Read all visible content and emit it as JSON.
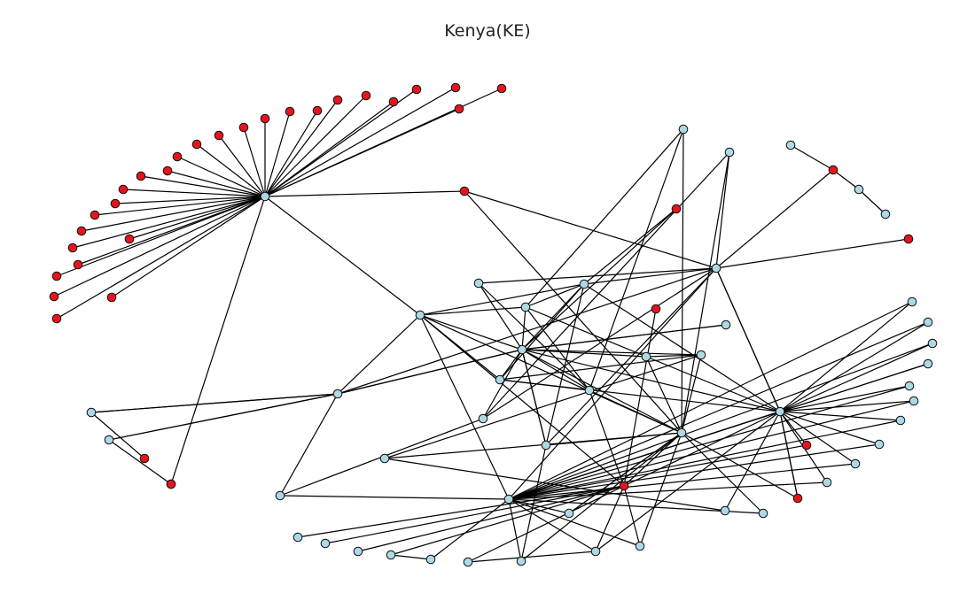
{
  "title": "Kenya(KE)",
  "colors": {
    "red": "#e8141c",
    "blue": "#add8e6",
    "edge": "#000000",
    "outline": "#111111"
  },
  "nodes": [
    {
      "id": "h1",
      "c": "blue"
    },
    {
      "id": "h2",
      "c": "blue"
    },
    {
      "id": "h3",
      "c": "blue"
    },
    {
      "id": "h4",
      "c": "blue"
    },
    {
      "id": "h5",
      "c": "blue"
    },
    {
      "id": "h6",
      "c": "blue"
    },
    {
      "id": "h7",
      "c": "blue"
    },
    {
      "id": "h8",
      "c": "blue"
    },
    {
      "id": "h9",
      "c": "blue"
    },
    {
      "id": "h10",
      "c": "blue"
    },
    {
      "id": "h11",
      "c": "blue"
    },
    {
      "id": "h12",
      "c": "red"
    },
    {
      "id": "h13",
      "c": "blue"
    },
    {
      "id": "h14",
      "c": "blue"
    },
    {
      "id": "h15",
      "c": "blue"
    },
    {
      "id": "h16",
      "c": "blue"
    },
    {
      "id": "h17",
      "c": "blue"
    },
    {
      "id": "h18",
      "c": "blue"
    },
    {
      "id": "h19",
      "c": "blue"
    },
    {
      "id": "h20",
      "c": "red"
    },
    {
      "id": "h21",
      "c": "red"
    },
    {
      "id": "h22",
      "c": "red"
    },
    {
      "id": "h23",
      "c": "blue"
    },
    {
      "id": "h24",
      "c": "blue"
    },
    {
      "id": "h25",
      "c": "blue"
    },
    {
      "id": "h26",
      "c": "blue"
    },
    {
      "id": "h27",
      "c": "blue"
    },
    {
      "id": "h28",
      "c": "blue"
    },
    {
      "id": "a1",
      "c": "red"
    },
    {
      "id": "a2",
      "c": "red"
    },
    {
      "id": "a3",
      "c": "red"
    },
    {
      "id": "a4",
      "c": "red"
    },
    {
      "id": "a5",
      "c": "red"
    },
    {
      "id": "a6",
      "c": "red"
    },
    {
      "id": "a7",
      "c": "red"
    },
    {
      "id": "a8",
      "c": "red"
    },
    {
      "id": "a9",
      "c": "red"
    },
    {
      "id": "a10",
      "c": "red"
    },
    {
      "id": "a11",
      "c": "red"
    },
    {
      "id": "a12",
      "c": "red"
    },
    {
      "id": "a13",
      "c": "red"
    },
    {
      "id": "a14",
      "c": "red"
    },
    {
      "id": "a15",
      "c": "red"
    },
    {
      "id": "a16",
      "c": "red"
    },
    {
      "id": "a17",
      "c": "red"
    },
    {
      "id": "a18",
      "c": "red"
    },
    {
      "id": "a19",
      "c": "red"
    },
    {
      "id": "a20",
      "c": "red"
    },
    {
      "id": "a21",
      "c": "red"
    },
    {
      "id": "a22",
      "c": "red"
    },
    {
      "id": "a23",
      "c": "red"
    },
    {
      "id": "a24",
      "c": "red"
    },
    {
      "id": "a25",
      "c": "red"
    },
    {
      "id": "a26",
      "c": "red"
    },
    {
      "id": "a27",
      "c": "red"
    },
    {
      "id": "a28",
      "c": "red"
    },
    {
      "id": "b1",
      "c": "blue"
    },
    {
      "id": "b2",
      "c": "blue"
    },
    {
      "id": "b3",
      "c": "red"
    },
    {
      "id": "b4",
      "c": "red"
    },
    {
      "id": "r1",
      "c": "blue"
    },
    {
      "id": "r2",
      "c": "blue"
    },
    {
      "id": "r3",
      "c": "blue"
    },
    {
      "id": "r4",
      "c": "blue"
    },
    {
      "id": "r5",
      "c": "blue"
    },
    {
      "id": "r6",
      "c": "blue"
    },
    {
      "id": "r7",
      "c": "blue"
    },
    {
      "id": "r8",
      "c": "blue"
    },
    {
      "id": "r9",
      "c": "blue"
    },
    {
      "id": "r10",
      "c": "blue"
    },
    {
      "id": "r11",
      "c": "blue"
    },
    {
      "id": "r12",
      "c": "red"
    },
    {
      "id": "s1",
      "c": "blue"
    },
    {
      "id": "s2",
      "c": "blue"
    },
    {
      "id": "s3",
      "c": "blue"
    },
    {
      "id": "s4",
      "c": "blue"
    },
    {
      "id": "s5",
      "c": "blue"
    },
    {
      "id": "s6",
      "c": "blue"
    },
    {
      "id": "s7",
      "c": "blue"
    },
    {
      "id": "s8",
      "c": "blue"
    },
    {
      "id": "tr1",
      "c": "red"
    },
    {
      "id": "tr2",
      "c": "red"
    },
    {
      "id": "tr3",
      "c": "blue"
    },
    {
      "id": "tr4",
      "c": "red"
    },
    {
      "id": "tr5",
      "c": "blue"
    },
    {
      "id": "tr6",
      "c": "blue"
    },
    {
      "id": "tr7",
      "c": "blue"
    }
  ],
  "edges": [
    [
      "h1",
      "a1"
    ],
    [
      "h1",
      "a2"
    ],
    [
      "h1",
      "a3"
    ],
    [
      "h1",
      "a4"
    ],
    [
      "h1",
      "a5"
    ],
    [
      "h1",
      "a6"
    ],
    [
      "h1",
      "a7"
    ],
    [
      "h1",
      "a8"
    ],
    [
      "h1",
      "a9"
    ],
    [
      "h1",
      "a10"
    ],
    [
      "h1",
      "a11"
    ],
    [
      "h1",
      "a12"
    ],
    [
      "h1",
      "a13"
    ],
    [
      "h1",
      "a14"
    ],
    [
      "h1",
      "a15"
    ],
    [
      "h1",
      "a16"
    ],
    [
      "h1",
      "a17"
    ],
    [
      "h1",
      "a18"
    ],
    [
      "h1",
      "a19"
    ],
    [
      "h1",
      "a20"
    ],
    [
      "h1",
      "a21"
    ],
    [
      "h1",
      "a22"
    ],
    [
      "h1",
      "a23"
    ],
    [
      "h1",
      "a24"
    ],
    [
      "h1",
      "a25"
    ],
    [
      "h1",
      "a26"
    ],
    [
      "h1",
      "a27"
    ],
    [
      "h1",
      "a28"
    ],
    [
      "h1",
      "h12"
    ],
    [
      "h1",
      "h5"
    ],
    [
      "h12",
      "h2"
    ],
    [
      "h2",
      "h3"
    ],
    [
      "h2",
      "h4"
    ],
    [
      "h2",
      "tr1"
    ],
    [
      "h2",
      "tr2"
    ],
    [
      "h2",
      "h7"
    ],
    [
      "h2",
      "h10"
    ],
    [
      "h2",
      "h13"
    ],
    [
      "h2",
      "h14"
    ],
    [
      "h2",
      "h17"
    ],
    [
      "h2",
      "h26"
    ],
    [
      "h3",
      "tr4"
    ],
    [
      "h3",
      "tr7"
    ],
    [
      "h3",
      "h4"
    ],
    [
      "h3",
      "h6"
    ],
    [
      "h3",
      "h10"
    ],
    [
      "h3",
      "h9"
    ],
    [
      "h3",
      "h8"
    ],
    [
      "h4",
      "h23"
    ],
    [
      "h4",
      "s5"
    ],
    [
      "h4",
      "s8"
    ],
    [
      "h4",
      "s7"
    ],
    [
      "h4",
      "r1"
    ],
    [
      "h4",
      "r2"
    ],
    [
      "h4",
      "r4"
    ],
    [
      "h4",
      "r5"
    ],
    [
      "h4",
      "r7"
    ],
    [
      "h4",
      "r9"
    ],
    [
      "h4",
      "r12"
    ],
    [
      "h5",
      "h6"
    ],
    [
      "h5",
      "h8"
    ],
    [
      "h5",
      "h9"
    ],
    [
      "h5",
      "h10"
    ],
    [
      "h5",
      "h22"
    ],
    [
      "h6",
      "h8"
    ],
    [
      "h6",
      "h7"
    ],
    [
      "h6",
      "h9"
    ],
    [
      "h6",
      "h10"
    ],
    [
      "h6",
      "h11"
    ],
    [
      "h6",
      "h13"
    ],
    [
      "h6",
      "h14"
    ],
    [
      "h6",
      "h15"
    ],
    [
      "h6",
      "h16"
    ],
    [
      "h6",
      "h17"
    ],
    [
      "h6",
      "h18"
    ],
    [
      "h6",
      "h19"
    ],
    [
      "h6",
      "h21"
    ],
    [
      "h7",
      "h16"
    ],
    [
      "h8",
      "h16"
    ],
    [
      "h8",
      "h25"
    ],
    [
      "h8",
      "h10"
    ],
    [
      "h9",
      "h10"
    ],
    [
      "h9",
      "h16"
    ],
    [
      "h9",
      "h18"
    ],
    [
      "h10",
      "h17"
    ],
    [
      "h10",
      "h21"
    ],
    [
      "h11",
      "h17"
    ],
    [
      "h11",
      "h25"
    ],
    [
      "h11",
      "h18"
    ],
    [
      "h11",
      "h22"
    ],
    [
      "h11",
      "h24"
    ],
    [
      "h11",
      "h26"
    ],
    [
      "h11",
      "h27"
    ],
    [
      "h11",
      "h28"
    ],
    [
      "h11",
      "h12"
    ],
    [
      "h11",
      "h16"
    ],
    [
      "h11",
      "h5"
    ],
    [
      "h11",
      "h15"
    ],
    [
      "h15",
      "h18"
    ],
    [
      "h16",
      "h22"
    ],
    [
      "h18",
      "h24"
    ],
    [
      "h17",
      "h6"
    ],
    [
      "h22",
      "s1"
    ],
    [
      "h22",
      "s2"
    ],
    [
      "h22",
      "s3"
    ],
    [
      "h22",
      "s4"
    ],
    [
      "h22",
      "s6"
    ],
    [
      "h22",
      "s7"
    ],
    [
      "h22",
      "s8"
    ],
    [
      "s4",
      "s5"
    ],
    [
      "s6",
      "s7"
    ],
    [
      "h4",
      "r3"
    ],
    [
      "h4",
      "r6"
    ],
    [
      "h4",
      "r8"
    ],
    [
      "h4",
      "r10"
    ],
    [
      "h4",
      "r11"
    ],
    [
      "h4",
      "h3"
    ],
    [
      "h13",
      "h23"
    ],
    [
      "h14",
      "h23"
    ],
    [
      "b1",
      "b3"
    ],
    [
      "b2",
      "b4"
    ],
    [
      "b1",
      "h13"
    ],
    [
      "b2",
      "h13"
    ],
    [
      "tr3",
      "tr1"
    ],
    [
      "tr1",
      "tr5"
    ],
    [
      "tr5",
      "tr6"
    ],
    [
      "h24",
      "tr7"
    ],
    [
      "h25",
      "h16"
    ],
    [
      "h26",
      "h14"
    ],
    [
      "h27",
      "h11"
    ],
    [
      "h28",
      "h17"
    ],
    [
      "h19",
      "h6"
    ],
    [
      "h20",
      "h22"
    ]
  ]
}
